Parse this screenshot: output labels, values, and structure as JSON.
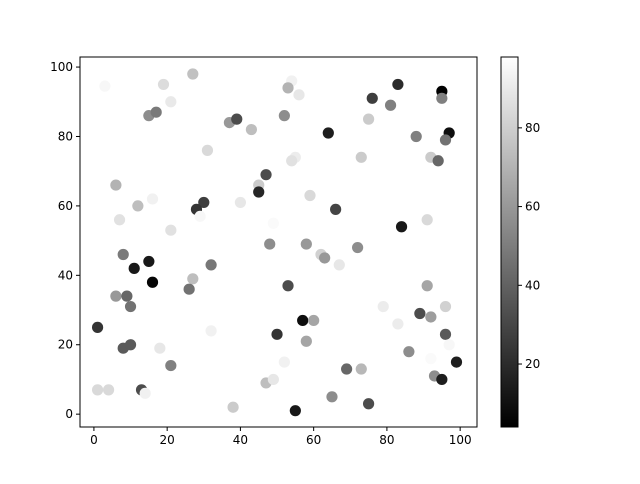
{
  "chart_data": {
    "type": "scatter",
    "title": "",
    "xlabel": "",
    "ylabel": "",
    "xlim": [
      -3.8,
      104.6
    ],
    "ylim": [
      -3.7,
      102.9
    ],
    "grid": false,
    "colormap": "gray",
    "color_range": [
      4,
      98
    ],
    "x_ticks": [
      0,
      20,
      40,
      60,
      80,
      100
    ],
    "y_ticks": [
      0,
      20,
      40,
      60,
      80,
      100
    ],
    "colorbar_ticks": [
      20,
      40,
      60,
      80
    ],
    "points": [
      [
        3,
        94.5,
        95
      ],
      [
        19,
        95,
        85
      ],
      [
        27,
        98,
        75
      ],
      [
        21,
        90,
        90
      ],
      [
        15,
        86,
        56
      ],
      [
        17,
        87,
        49
      ],
      [
        37,
        84,
        60
      ],
      [
        39,
        85,
        32
      ],
      [
        43,
        82,
        74
      ],
      [
        31,
        76,
        84
      ],
      [
        47,
        69,
        32
      ],
      [
        45,
        66,
        79
      ],
      [
        45,
        64,
        18
      ],
      [
        6,
        66,
        70
      ],
      [
        12,
        60,
        74
      ],
      [
        16,
        62,
        93
      ],
      [
        7,
        56,
        87
      ],
      [
        30,
        61,
        27
      ],
      [
        28,
        59,
        23
      ],
      [
        40,
        61,
        89
      ],
      [
        29,
        57,
        95
      ],
      [
        21,
        53,
        87
      ],
      [
        49,
        55,
        96
      ],
      [
        48,
        49,
        56
      ],
      [
        54,
        96,
        93
      ],
      [
        53,
        94,
        70
      ],
      [
        56,
        92,
        89
      ],
      [
        52,
        86,
        56
      ],
      [
        55,
        74,
        91
      ],
      [
        54,
        73,
        87
      ],
      [
        64,
        81,
        15
      ],
      [
        75,
        85,
        79
      ],
      [
        76,
        91,
        27
      ],
      [
        83,
        95,
        20
      ],
      [
        81,
        89,
        51
      ],
      [
        95,
        93,
        4
      ],
      [
        95,
        91,
        51
      ],
      [
        97,
        81,
        9
      ],
      [
        96,
        79,
        46
      ],
      [
        88,
        80,
        51
      ],
      [
        92,
        74,
        79
      ],
      [
        94,
        73,
        42
      ],
      [
        73,
        74,
        79
      ],
      [
        59,
        63,
        84
      ],
      [
        66,
        59,
        29
      ],
      [
        84,
        54,
        13
      ],
      [
        91,
        56,
        84
      ],
      [
        58,
        49,
        60
      ],
      [
        8,
        46,
        49
      ],
      [
        11,
        42,
        13
      ],
      [
        15,
        44,
        13
      ],
      [
        16,
        38,
        6
      ],
      [
        32,
        43,
        48
      ],
      [
        27,
        39,
        74
      ],
      [
        26,
        36,
        46
      ],
      [
        6,
        34,
        60
      ],
      [
        9,
        34,
        42
      ],
      [
        10,
        31,
        46
      ],
      [
        1,
        25,
        23
      ],
      [
        8,
        19,
        37
      ],
      [
        10,
        20,
        37
      ],
      [
        18,
        19,
        89
      ],
      [
        32,
        24,
        93
      ],
      [
        21,
        14,
        51
      ],
      [
        1,
        7,
        84
      ],
      [
        4,
        7,
        84
      ],
      [
        13,
        7,
        32
      ],
      [
        14,
        6,
        93
      ],
      [
        38,
        2,
        79
      ],
      [
        47,
        9,
        74
      ],
      [
        49,
        10,
        89
      ],
      [
        50,
        23,
        23
      ],
      [
        62,
        46,
        81
      ],
      [
        63,
        45,
        60
      ],
      [
        67,
        43,
        89
      ],
      [
        72,
        48,
        56
      ],
      [
        53,
        37,
        32
      ],
      [
        57,
        27,
        9
      ],
      [
        60,
        27,
        65
      ],
      [
        58,
        21,
        65
      ],
      [
        52,
        15,
        93
      ],
      [
        65,
        5,
        56
      ],
      [
        55,
        1,
        13
      ],
      [
        69,
        13,
        42
      ],
      [
        73,
        13,
        72
      ],
      [
        75,
        3,
        32
      ],
      [
        79,
        31,
        91
      ],
      [
        83,
        26,
        91
      ],
      [
        89,
        29,
        32
      ],
      [
        92,
        28,
        62
      ],
      [
        91,
        37,
        65
      ],
      [
        96,
        31,
        81
      ],
      [
        96,
        23,
        37
      ],
      [
        97,
        20,
        95
      ],
      [
        92,
        16,
        96
      ],
      [
        99,
        15,
        15
      ],
      [
        86,
        18,
        56
      ],
      [
        93,
        11,
        56
      ],
      [
        95,
        10,
        15
      ]
    ]
  }
}
